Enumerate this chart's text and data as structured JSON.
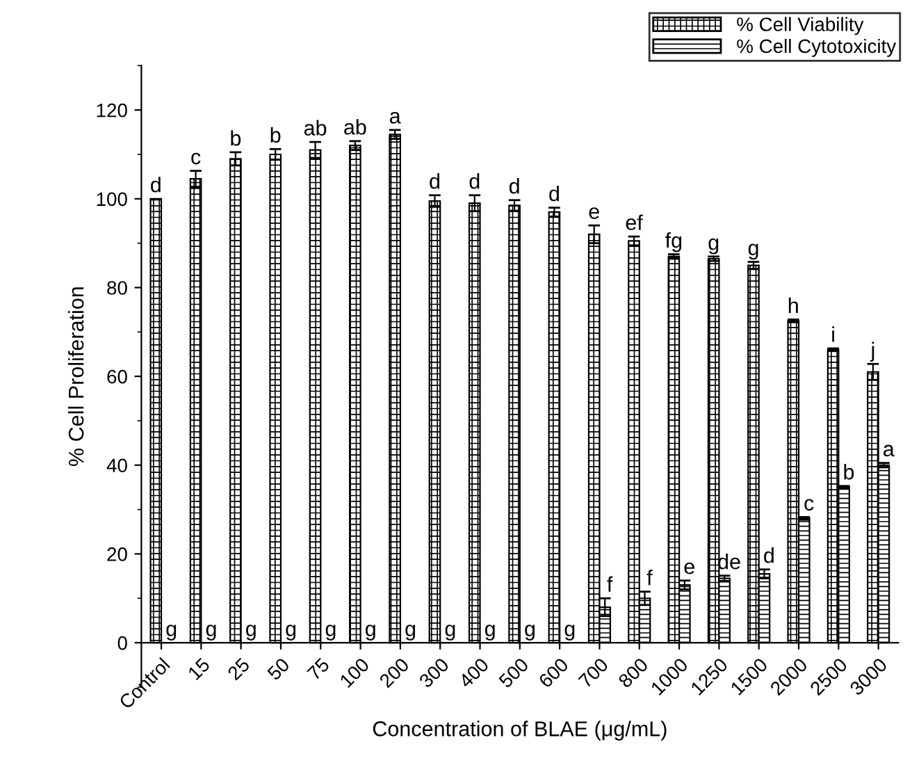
{
  "chart_data": {
    "type": "bar",
    "xlabel": "Concentration of BLAE (μg/mL)",
    "ylabel": "% Cell Proliferation",
    "categories": [
      "Control",
      "15",
      "25",
      "50",
      "75",
      "100",
      "200",
      "300",
      "400",
      "500",
      "600",
      "700",
      "800",
      "1000",
      "1250",
      "1500",
      "2000",
      "2500",
      "3000"
    ],
    "series": [
      {
        "name": "% Cell Viability",
        "color": "#000000",
        "values": [
          100,
          104.5,
          109,
          110,
          111,
          112,
          114.5,
          99.5,
          99,
          98.5,
          97,
          92,
          90.5,
          87,
          86.5,
          85,
          72.5,
          66,
          61
        ],
        "errors": [
          null,
          1.8,
          1.5,
          1.2,
          1.8,
          1,
          1,
          1.3,
          1.8,
          1.2,
          1,
          2,
          1,
          0.5,
          0.5,
          0.8,
          0.3,
          0.3,
          1.8
        ],
        "value_labels": [
          "d",
          "c",
          "b",
          "b",
          "ab",
          "ab",
          "a",
          "d",
          "d",
          "d",
          "d",
          "e",
          "ef",
          "fg",
          "g",
          "g",
          "h",
          "i",
          "j"
        ]
      },
      {
        "name": "% Cell Cytotoxicity",
        "color": "#000000",
        "values": [
          0,
          0,
          0,
          0,
          0,
          0,
          0,
          0,
          0,
          0,
          0,
          8,
          10,
          13,
          14.5,
          15.5,
          28,
          35,
          40
        ],
        "errors": [
          null,
          null,
          null,
          null,
          null,
          null,
          null,
          null,
          null,
          null,
          null,
          2,
          1.5,
          1,
          0.6,
          1,
          0.3,
          0.3,
          0.5
        ],
        "value_labels": [
          "g",
          "g",
          "g",
          "g",
          "g",
          "g",
          "g",
          "g",
          "g",
          "g",
          "g",
          "f",
          "f",
          "e",
          "de",
          "d",
          "c",
          "b",
          "a"
        ]
      }
    ],
    "ylim": [
      -10,
      130
    ],
    "yticks": [
      0,
      20,
      40,
      60,
      80,
      100,
      120
    ],
    "legend": "top right",
    "grid": false
  }
}
